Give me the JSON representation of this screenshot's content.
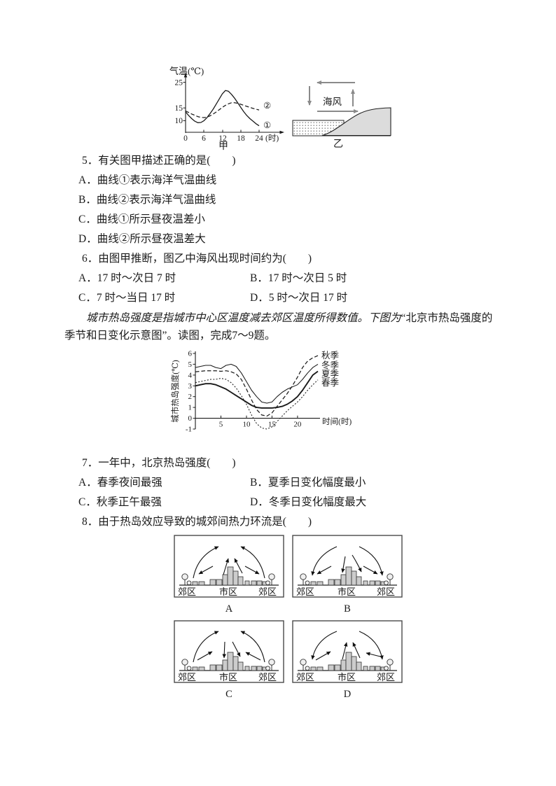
{
  "chart_data": [
    {
      "type": "line",
      "title": "气温(℃)",
      "caption": "甲",
      "xunit": "(时)",
      "yticks": [
        "25",
        "15",
        "10"
      ],
      "xticks": [
        "0",
        "6",
        "12",
        "18",
        "24"
      ],
      "xlim": [
        0,
        24
      ],
      "x": [
        0,
        1,
        2,
        3,
        4,
        5,
        6,
        7,
        8,
        9,
        10,
        11,
        12,
        13,
        14,
        15,
        16,
        17,
        18,
        19,
        20,
        21,
        22,
        23,
        24
      ],
      "series": [
        {
          "name": "①",
          "style": "solid",
          "values": [
            13.5,
            12,
            10.8,
            9.8,
            9.2,
            9.3,
            10,
            11.2,
            12.8,
            14.5,
            16.5,
            18.5,
            20.5,
            21.8,
            21.5,
            20.3,
            18.8,
            17,
            15.2,
            13.5,
            12,
            10.8,
            9.8,
            8.8,
            8
          ]
        },
        {
          "name": "②",
          "style": "dashed",
          "values": [
            13.8,
            13.2,
            12.6,
            12.1,
            11.6,
            11.3,
            11.2,
            11.4,
            11.9,
            12.6,
            13.4,
            14.3,
            15.2,
            16,
            16.6,
            17,
            17,
            16.8,
            16.4,
            16,
            15.6,
            15.2,
            14.8,
            14.5,
            14.2
          ]
        }
      ]
    },
    {
      "type": "line",
      "title": "北京市热岛强度的季节和日变化示意图",
      "ylabel": "城市热岛强度(℃)",
      "xlabel": "时间(时)",
      "ylim": [
        -1,
        6
      ],
      "xlim": [
        0,
        24
      ],
      "yticks": [
        "6",
        "5",
        "4",
        "3",
        "2",
        "1",
        "0",
        "-1"
      ],
      "xticks": [
        "5",
        "10",
        "15",
        "20"
      ],
      "x": [
        0,
        1,
        2,
        3,
        4,
        5,
        6,
        7,
        8,
        9,
        10,
        11,
        12,
        13,
        14,
        15,
        16,
        17,
        18,
        19,
        20,
        21,
        22,
        23,
        24
      ],
      "series": [
        {
          "name": "秋季",
          "style": "dashed",
          "values": [
            4.3,
            4.35,
            4.4,
            4.4,
            4.4,
            4.35,
            4.4,
            4.3,
            4.1,
            3.6,
            2.7,
            1.7,
            0.8,
            0.3,
            0.2,
            0.5,
            1.1,
            1.7,
            2.3,
            3,
            3.8,
            4.7,
            5.3,
            5.6,
            5.8
          ]
        },
        {
          "name": "冬季",
          "style": "solid-thin",
          "values": [
            4.7,
            4.8,
            4.9,
            4.9,
            4.7,
            4.6,
            4.9,
            5,
            4.8,
            4.2,
            3.4,
            2.6,
            2,
            1.5,
            1.4,
            1.5,
            2,
            2.4,
            2.7,
            2.9,
            3.1,
            3.6,
            4.2,
            4.7,
            5
          ]
        },
        {
          "name": "夏季",
          "style": "solid-thick",
          "values": [
            3,
            3.1,
            3.2,
            3.2,
            3.1,
            2.9,
            2.7,
            2.4,
            2.1,
            1.8,
            1.5,
            1.2,
            1,
            0.95,
            0.95,
            0.95,
            1,
            1.1,
            1.3,
            1.6,
            2,
            2.6,
            3.3,
            4,
            4.35
          ]
        },
        {
          "name": "春季",
          "style": "dotted",
          "values": [
            3.3,
            3.4,
            3.5,
            3.6,
            3.6,
            3.7,
            3.6,
            3.3,
            2.8,
            2.1,
            1.3,
            0.3,
            -0.5,
            -0.9,
            -1,
            -0.8,
            -0.3,
            0.2,
            0.7,
            1.1,
            1.5,
            2,
            2.6,
            3.1,
            3.55
          ]
        }
      ]
    }
  ],
  "figure_yi": {
    "wind": "海风",
    "caption": "乙"
  },
  "questions": {
    "q5": {
      "stem": "5．有关图甲描述正确的是(　　)",
      "options": [
        "A．曲线①表示海洋气温曲线",
        "B．曲线②表示海洋气温曲线",
        "C．曲线①所示昼夜温差小",
        "D．曲线②所示昼夜温差大"
      ]
    },
    "q6": {
      "stem": "6．由图甲推断，图乙中海风出现时间约为(　　)",
      "options": [
        "A．17 时～次日 7 时",
        "B．17 时～次日 5 时",
        "C．7 时～当日 17 时",
        "D．5 时～次日 17 时"
      ]
    },
    "passage": {
      "intro": "城市热岛强度是指城市中心区温度减去郊区温度所得数值。下图为",
      "rest": "“北京市热岛强度的季节和日变化示意图”。读图，完成7～9题。"
    },
    "q7": {
      "stem": "7．一年中，北京热岛强度(　　)",
      "options": [
        "A．春季夜间最强",
        "B．夏季日变化幅度最小",
        "C．秋季正午最强",
        "D．冬季日变化幅度最大"
      ]
    },
    "q8": {
      "stem": "8．由于热岛效应导致的城郊间热力环流是(　　)"
    }
  },
  "diagrams": {
    "letters": [
      "A",
      "B",
      "C",
      "D"
    ],
    "suburb": "郊区",
    "urban": "市区"
  }
}
